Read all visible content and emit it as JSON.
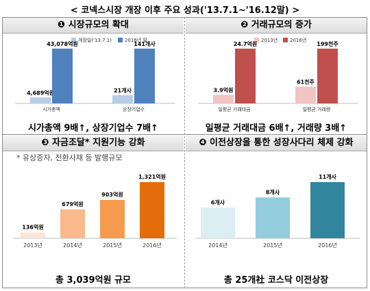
{
  "title": "< 코넥스시장 개장 이후 주요 성과('13.7.1~'16.12말) >",
  "panels": [
    {
      "title": "❶ 시장규모의 확대",
      "caption": "시가총액 9배↑, 상장기업수 7배↑"
    },
    {
      "title": "❷ 거래규모의 증가",
      "caption": "일평균 거래대금 6배↑, 거래량 3배↑"
    },
    {
      "title": "❸ 자금조달* 지원기능 강화",
      "subtitle": "* 유상증자, 전환사채 등 발행규모",
      "caption": "총 3,039억원 규모"
    },
    {
      "title": "❹ 이전상장을 통한 성장사다리 체제 강화",
      "caption": "총 25개社 코스닥 이전상장"
    }
  ],
  "chart_data": [
    {
      "type": "bar",
      "legend": [
        "개장일('13.7.1)",
        "2016년 말"
      ],
      "colors": [
        "#b8cce4",
        "#4f81bd"
      ],
      "categories": [
        "시가총액",
        "상장기업수"
      ],
      "series": [
        {
          "name": "개장일('13.7.1)",
          "values": [
            4689,
            21
          ],
          "labels": [
            "4,689억원",
            "21개사"
          ]
        },
        {
          "name": "2016년 말",
          "values": [
            43078,
            141
          ],
          "labels": [
            "43,078억원",
            "141개사"
          ]
        }
      ]
    },
    {
      "type": "bar",
      "legend": [
        "2013년",
        "2016년"
      ],
      "colors": [
        "#f2c4c4",
        "#c0504d"
      ],
      "categories": [
        "일평균 거래대금",
        "일평균 거래량"
      ],
      "series": [
        {
          "name": "2013년",
          "values": [
            3.9,
            61
          ],
          "labels": [
            "3.9억원",
            "61천주"
          ]
        },
        {
          "name": "2016년",
          "values": [
            24.7,
            199
          ],
          "labels": [
            "24.7억원",
            "199천주"
          ]
        }
      ]
    },
    {
      "type": "bar",
      "categories": [
        "2013년",
        "2014년",
        "2015년",
        "2016년"
      ],
      "values": [
        136,
        679,
        903,
        1321
      ],
      "labels": [
        "136억원",
        "679억원",
        "903억원",
        "1,321억원"
      ],
      "colors": [
        "#fbe5d6",
        "#f8b98c",
        "#f59b4f",
        "#e46c0a"
      ]
    },
    {
      "type": "bar",
      "categories": [
        "2014년",
        "2015년",
        "2016년"
      ],
      "values": [
        6,
        8,
        11
      ],
      "labels": [
        "6개사",
        "8개사",
        "11개사"
      ],
      "colors": [
        "#daeef3",
        "#93cddd",
        "#31859c"
      ]
    }
  ]
}
